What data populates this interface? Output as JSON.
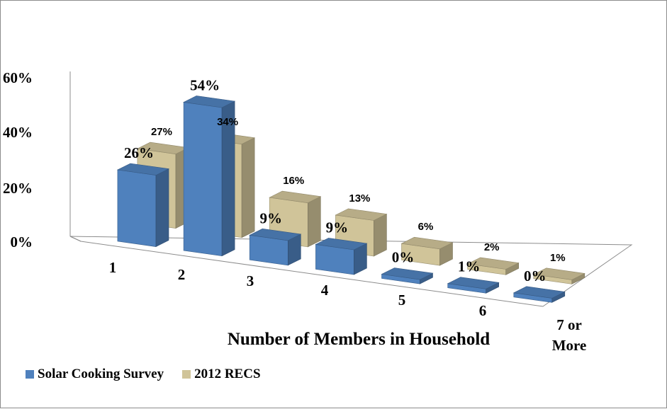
{
  "chart_data": {
    "type": "bar",
    "xlabel": "Number of Members in Household",
    "ylabel": "",
    "ylim": [
      0,
      60
    ],
    "yticks": [
      "0%",
      "20%",
      "40%",
      "60%"
    ],
    "categories": [
      "1",
      "2",
      "3",
      "4",
      "5",
      "6",
      "7 or More"
    ],
    "series": [
      {
        "name": "Solar Cooking Survey",
        "values": [
          26,
          54,
          9,
          9,
          0,
          1,
          0
        ],
        "labels": [
          "26%",
          "54%",
          "9%",
          "9%",
          "0%",
          "1%",
          "0%"
        ],
        "color": "#4f81bd"
      },
      {
        "name": "2012 RECS",
        "values": [
          27,
          34,
          16,
          13,
          6,
          2,
          1
        ],
        "labels": [
          "27%",
          "34%",
          "16%",
          "13%",
          "6%",
          "2%",
          "1%"
        ],
        "color": "#d0c499"
      }
    ],
    "grid": false,
    "legend": "bottom-left"
  }
}
